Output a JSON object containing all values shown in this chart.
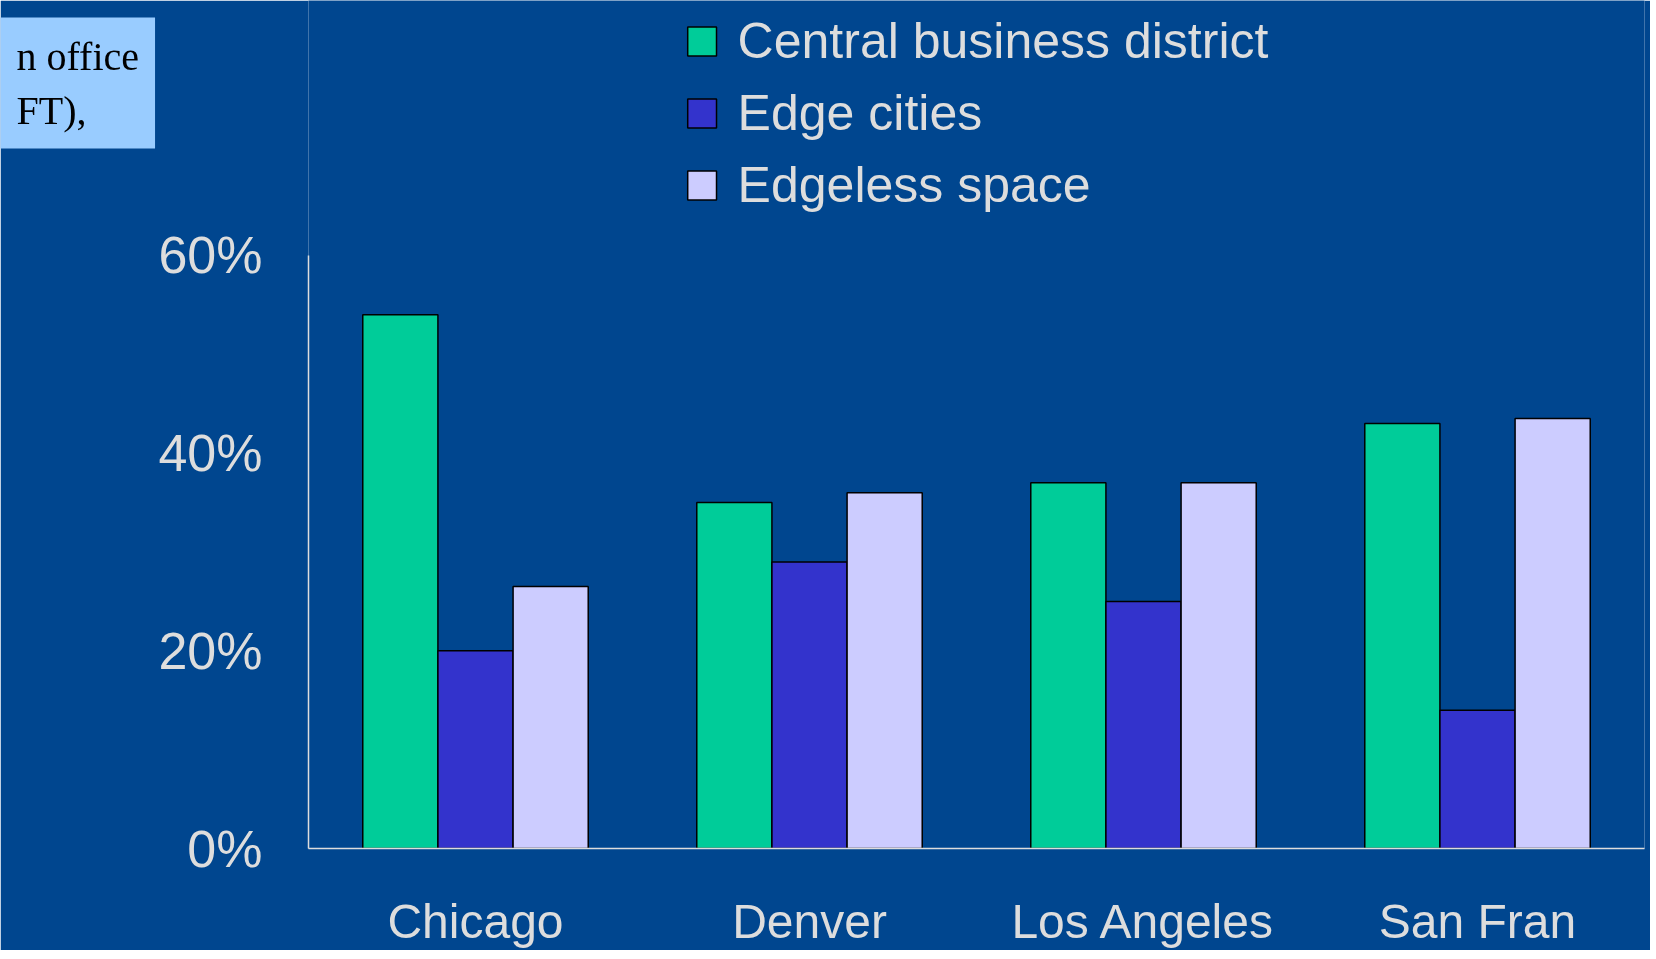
{
  "chart_data": {
    "type": "bar",
    "categories": [
      "Chicago",
      "Denver",
      "Los Angeles",
      "San Fran"
    ],
    "series": [
      {
        "name": "Central business district",
        "color": "#00cc99",
        "values": [
          54,
          35,
          37,
          43
        ]
      },
      {
        "name": "Edge cities",
        "color": "#3333cc",
        "values": [
          20,
          29,
          25,
          14
        ]
      },
      {
        "name": "Edgeless space",
        "color": "#ccccff",
        "values": [
          26.5,
          36,
          37,
          43.5
        ]
      }
    ],
    "ylim": [
      0,
      60
    ],
    "yticks": [
      {
        "value": 0,
        "label": "0%"
      },
      {
        "value": 20,
        "label": "20%"
      },
      {
        "value": 40,
        "label": "40%"
      },
      {
        "value": 60,
        "label": "60%"
      }
    ],
    "grid": false,
    "legend": "top",
    "annotations": [
      "n office\nFT),"
    ]
  }
}
